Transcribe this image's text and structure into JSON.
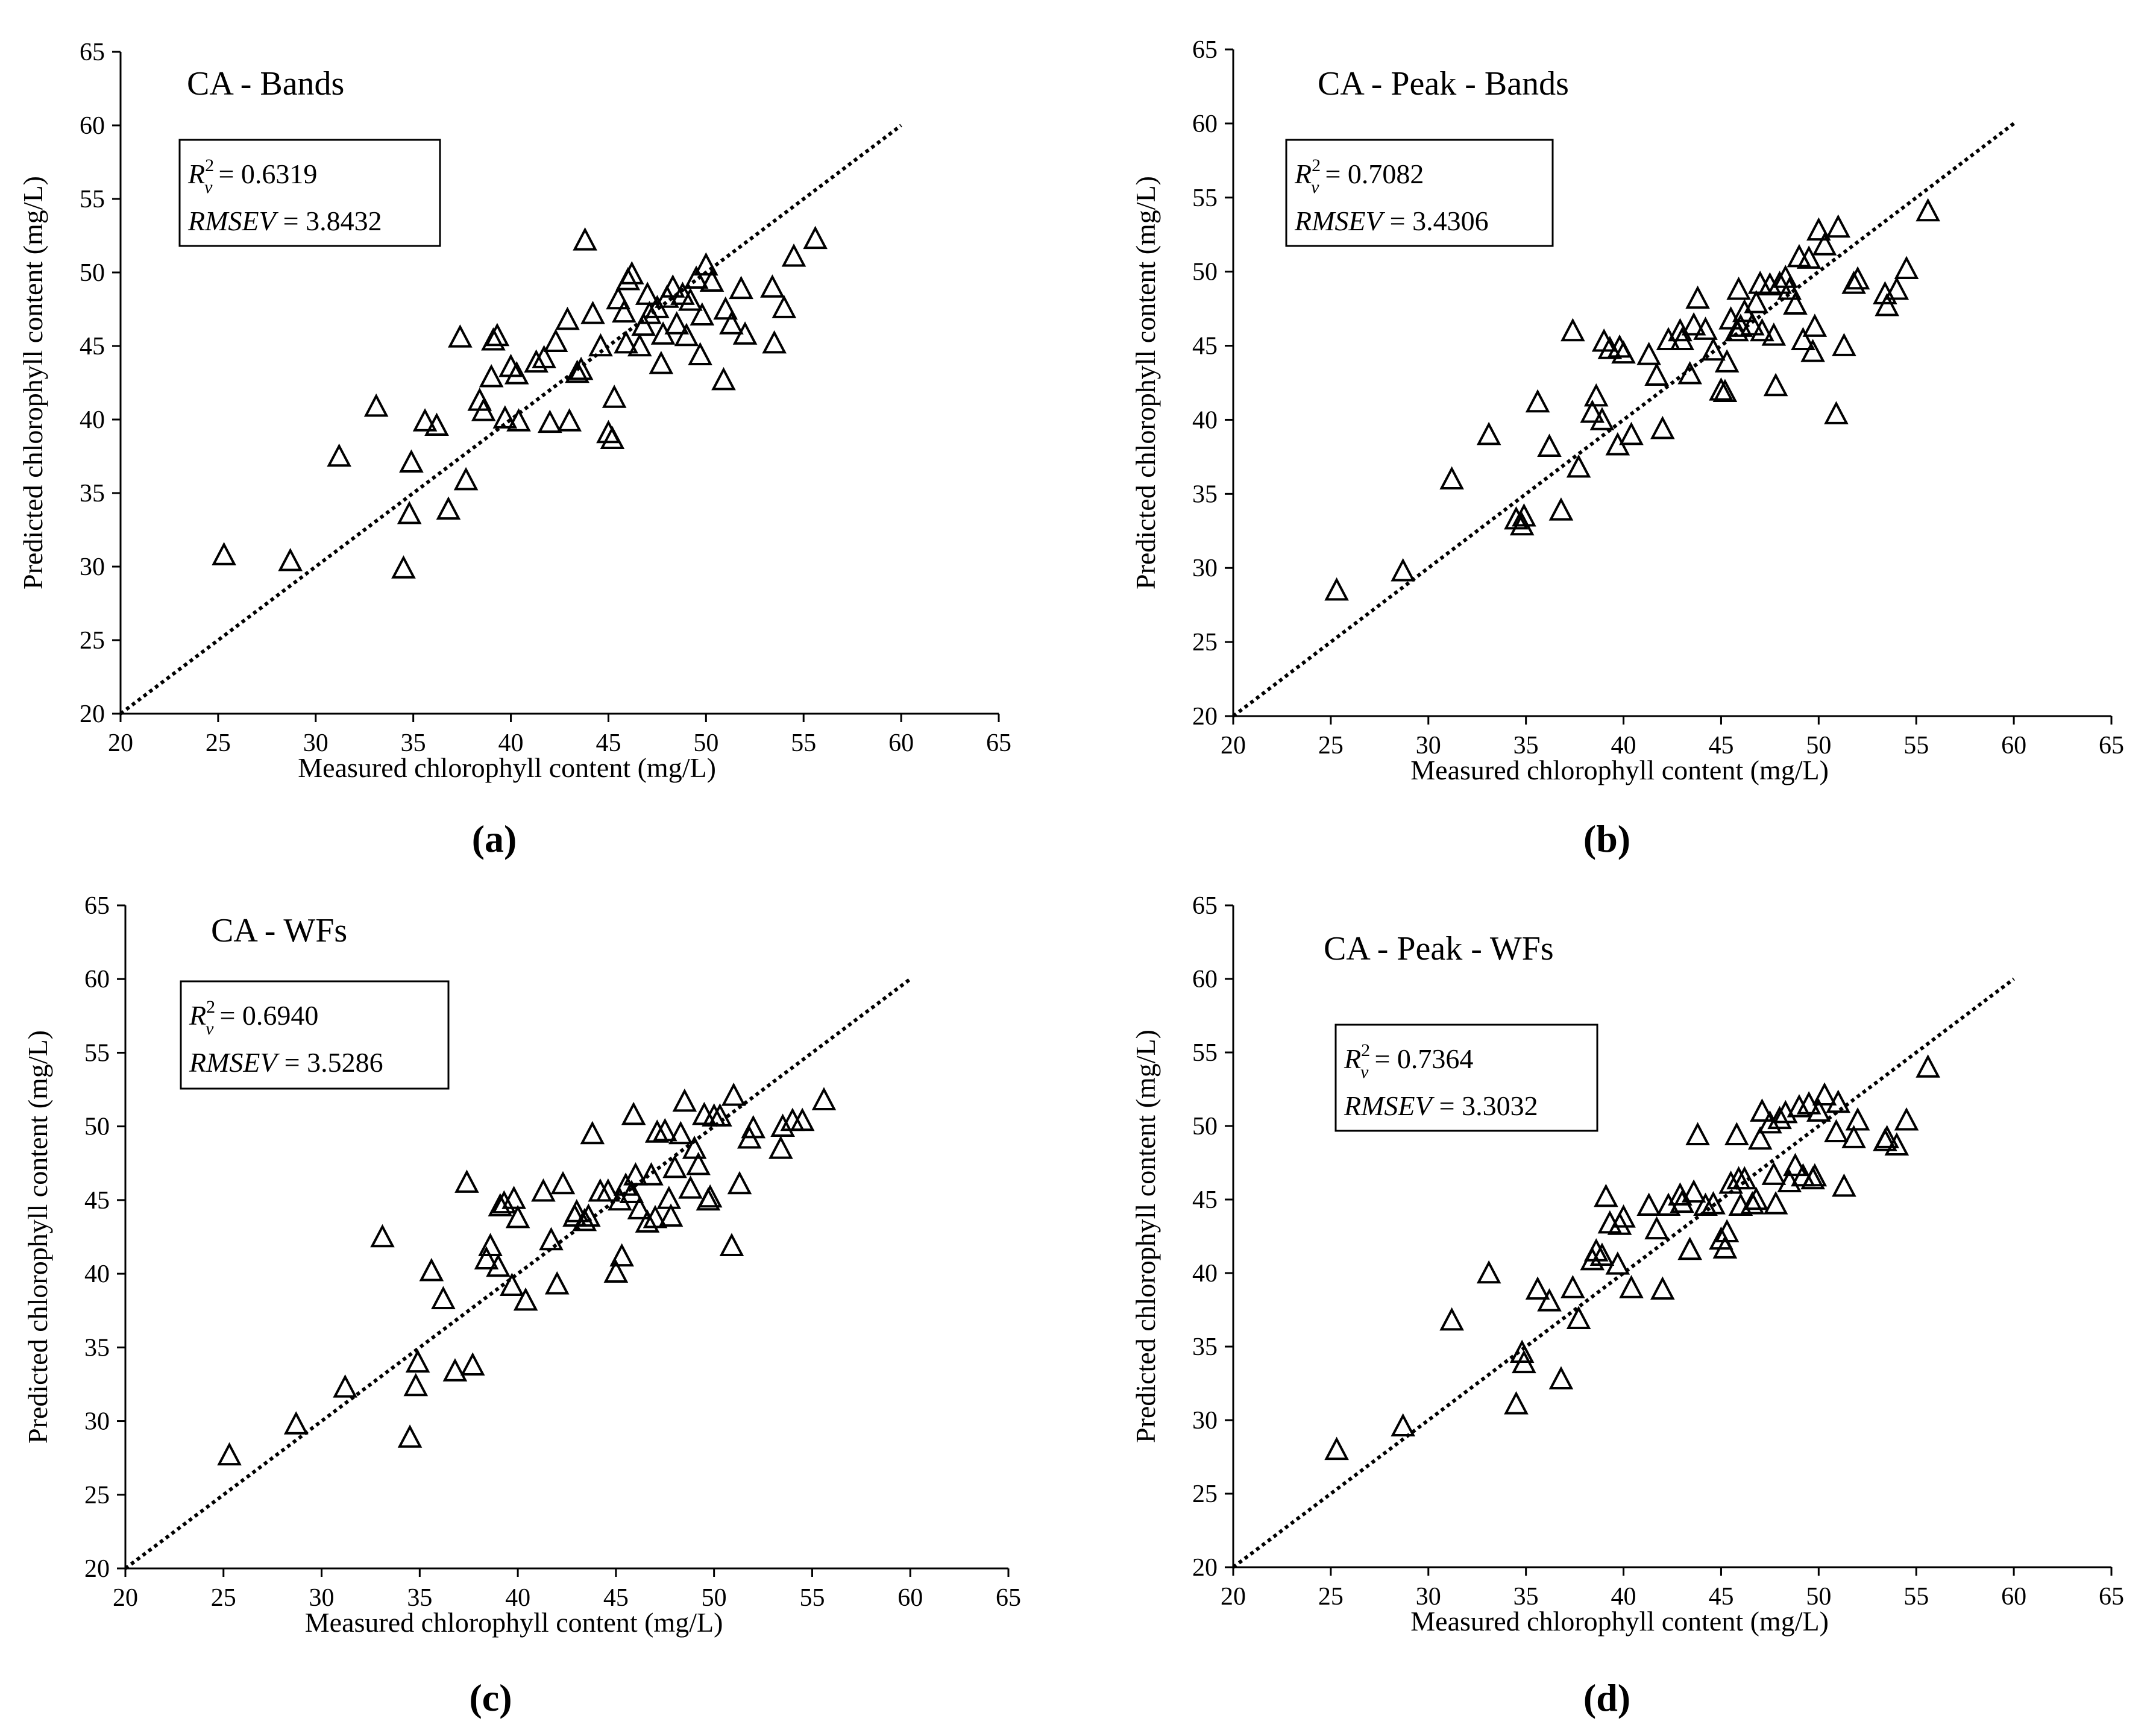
{
  "chart_data": [
    {
      "type": "scatter",
      "title": "CA - Bands",
      "panel_label": "(a)",
      "xlabel": "Measured chlorophyll content (mg/L)",
      "ylabel": "Predicted chlorophyll content (mg/L)",
      "xlim": [
        20,
        65
      ],
      "ylim": [
        20,
        65
      ],
      "xticks": [
        "20",
        "25",
        "30",
        "35",
        "40",
        "45",
        "50",
        "55",
        "60",
        "65"
      ],
      "yticks": [
        "20",
        "25",
        "30",
        "35",
        "40",
        "45",
        "50",
        "55",
        "60",
        "65"
      ],
      "reference_line": {
        "from": [
          20,
          20
        ],
        "to": [
          60,
          60
        ],
        "style": "dotted"
      },
      "stats": {
        "r2_label": "R",
        "r2_sup": "2",
        "r2_sub": "v",
        "r2_value": "= 0.6319",
        "rmse_label": "RMSEV",
        "rmse_value": "= 3.8432"
      },
      "marker": "open-triangle",
      "points": [
        [
          25.3,
          30.8
        ],
        [
          28.7,
          30.4
        ],
        [
          31.2,
          37.5
        ],
        [
          33.1,
          40.9
        ],
        [
          34.5,
          29.9
        ],
        [
          34.8,
          33.6
        ],
        [
          34.9,
          37.1
        ],
        [
          35.6,
          39.9
        ],
        [
          36.2,
          39.6
        ],
        [
          36.8,
          33.9
        ],
        [
          37.4,
          45.6
        ],
        [
          37.7,
          35.9
        ],
        [
          38.4,
          41.3
        ],
        [
          38.6,
          40.6
        ],
        [
          39.0,
          42.9
        ],
        [
          39.1,
          45.4
        ],
        [
          39.3,
          45.7
        ],
        [
          39.7,
          40.1
        ],
        [
          40.0,
          43.6
        ],
        [
          40.3,
          43.1
        ],
        [
          40.4,
          39.9
        ],
        [
          41.3,
          43.9
        ],
        [
          41.7,
          44.2
        ],
        [
          42.0,
          39.8
        ],
        [
          42.3,
          45.3
        ],
        [
          42.9,
          46.8
        ],
        [
          43.0,
          39.9
        ],
        [
          43.4,
          43.2
        ],
        [
          43.6,
          43.4
        ],
        [
          43.8,
          52.2
        ],
        [
          44.2,
          47.2
        ],
        [
          44.6,
          45.0
        ],
        [
          45.0,
          39.1
        ],
        [
          45.2,
          38.7
        ],
        [
          45.3,
          41.5
        ],
        [
          45.5,
          48.2
        ],
        [
          45.8,
          47.3
        ],
        [
          45.9,
          45.2
        ],
        [
          46.0,
          49.5
        ],
        [
          46.2,
          49.9
        ],
        [
          46.6,
          45.0
        ],
        [
          46.8,
          46.4
        ],
        [
          47.0,
          48.5
        ],
        [
          47.1,
          47.2
        ],
        [
          47.5,
          47.6
        ],
        [
          47.7,
          43.8
        ],
        [
          47.8,
          45.8
        ],
        [
          48.0,
          48.3
        ],
        [
          48.3,
          49.0
        ],
        [
          48.5,
          46.5
        ],
        [
          48.8,
          48.5
        ],
        [
          49.0,
          45.7
        ],
        [
          49.2,
          48.1
        ],
        [
          49.5,
          49.6
        ],
        [
          49.7,
          44.4
        ],
        [
          49.8,
          47.1
        ],
        [
          50.0,
          50.5
        ],
        [
          50.3,
          49.4
        ],
        [
          50.9,
          42.7
        ],
        [
          51.0,
          47.5
        ],
        [
          51.3,
          46.5
        ],
        [
          51.8,
          48.9
        ],
        [
          52.0,
          45.8
        ],
        [
          53.4,
          49.0
        ],
        [
          53.5,
          45.2
        ],
        [
          54.0,
          47.6
        ],
        [
          54.5,
          51.1
        ],
        [
          55.6,
          52.3
        ]
      ]
    },
    {
      "type": "scatter",
      "title": "CA - Peak - Bands",
      "panel_label": "(b)",
      "xlabel": "Measured chlorophyll content (mg/L)",
      "ylabel": "Predicted chlorophyll content (mg/L)",
      "xlim": [
        20,
        65
      ],
      "ylim": [
        20,
        65
      ],
      "xticks": [
        "20",
        "25",
        "30",
        "35",
        "40",
        "45",
        "50",
        "55",
        "60",
        "65"
      ],
      "yticks": [
        "20",
        "25",
        "30",
        "35",
        "40",
        "45",
        "50",
        "55",
        "60",
        "65"
      ],
      "reference_line": {
        "from": [
          20,
          20
        ],
        "to": [
          60,
          60
        ],
        "style": "dotted"
      },
      "stats": {
        "r2_label": "R",
        "r2_sup": "2",
        "r2_sub": "v",
        "r2_value": "= 0.7082",
        "rmse_label": "RMSEV",
        "rmse_value": "= 3.4306"
      },
      "marker": "open-triangle",
      "points": [
        [
          25.3,
          28.5
        ],
        [
          28.7,
          29.8
        ],
        [
          31.2,
          36.0
        ],
        [
          33.1,
          39.0
        ],
        [
          34.5,
          33.3
        ],
        [
          34.8,
          32.9
        ],
        [
          34.9,
          33.5
        ],
        [
          35.6,
          41.2
        ],
        [
          36.2,
          38.2
        ],
        [
          36.8,
          33.9
        ],
        [
          37.4,
          46.0
        ],
        [
          37.7,
          36.8
        ],
        [
          38.4,
          40.5
        ],
        [
          38.6,
          41.6
        ],
        [
          38.9,
          40.0
        ],
        [
          39.0,
          45.3
        ],
        [
          39.3,
          44.8
        ],
        [
          39.7,
          38.3
        ],
        [
          39.8,
          44.9
        ],
        [
          40.0,
          44.5
        ],
        [
          40.4,
          39.0
        ],
        [
          41.3,
          44.4
        ],
        [
          41.7,
          43.0
        ],
        [
          42.0,
          39.4
        ],
        [
          42.3,
          45.4
        ],
        [
          42.9,
          46.0
        ],
        [
          43.0,
          45.4
        ],
        [
          43.4,
          43.1
        ],
        [
          43.6,
          46.4
        ],
        [
          43.8,
          48.2
        ],
        [
          44.2,
          46.1
        ],
        [
          44.6,
          44.7
        ],
        [
          45.0,
          42.0
        ],
        [
          45.2,
          41.9
        ],
        [
          45.3,
          43.9
        ],
        [
          45.5,
          46.8
        ],
        [
          45.8,
          46.0
        ],
        [
          45.9,
          48.8
        ],
        [
          46.0,
          46.3
        ],
        [
          46.2,
          47.3
        ],
        [
          46.6,
          46.4
        ],
        [
          46.8,
          47.9
        ],
        [
          47.0,
          49.2
        ],
        [
          47.1,
          46.0
        ],
        [
          47.5,
          49.1
        ],
        [
          47.7,
          45.7
        ],
        [
          47.8,
          42.3
        ],
        [
          48.0,
          49.2
        ],
        [
          48.3,
          49.6
        ],
        [
          48.5,
          48.8
        ],
        [
          48.8,
          47.8
        ],
        [
          49.0,
          51.0
        ],
        [
          49.2,
          45.4
        ],
        [
          49.5,
          50.9
        ],
        [
          49.7,
          44.6
        ],
        [
          49.8,
          46.3
        ],
        [
          50.0,
          52.8
        ],
        [
          50.3,
          51.8
        ],
        [
          50.9,
          40.4
        ],
        [
          51.0,
          53.0
        ],
        [
          51.3,
          45.0
        ],
        [
          51.8,
          49.2
        ],
        [
          52.0,
          49.5
        ],
        [
          53.4,
          48.5
        ],
        [
          53.5,
          47.7
        ],
        [
          54.0,
          48.8
        ],
        [
          54.5,
          50.2
        ],
        [
          55.6,
          54.1
        ]
      ]
    },
    {
      "type": "scatter",
      "title": "CA - WFs",
      "panel_label": "(c)",
      "xlabel": "Measured chlorophyll content (mg/L)",
      "ylabel": "Predicted chlorophyll content (mg/L)",
      "xlim": [
        20,
        65
      ],
      "ylim": [
        20,
        65
      ],
      "xticks": [
        "20",
        "25",
        "30",
        "35",
        "40",
        "45",
        "50",
        "55",
        "60",
        "65"
      ],
      "yticks": [
        "20",
        "25",
        "30",
        "35",
        "40",
        "45",
        "50",
        "55",
        "60",
        "65"
      ],
      "reference_line": {
        "from": [
          20,
          20
        ],
        "to": [
          60,
          60
        ],
        "style": "dotted"
      },
      "stats": {
        "r2_label": "R",
        "r2_sup": "2",
        "r2_sub": "v",
        "r2_value": "= 0.6940",
        "rmse_label": "RMSEV",
        "rmse_value": "= 3.5286"
      },
      "marker": "open-triangle",
      "points": [
        [
          25.3,
          27.7
        ],
        [
          28.7,
          29.8
        ],
        [
          31.2,
          32.3
        ],
        [
          33.1,
          42.5
        ],
        [
          34.5,
          28.9
        ],
        [
          34.8,
          32.4
        ],
        [
          34.9,
          34.0
        ],
        [
          35.6,
          40.2
        ],
        [
          36.2,
          38.3
        ],
        [
          36.8,
          33.4
        ],
        [
          37.4,
          46.2
        ],
        [
          37.7,
          33.8
        ],
        [
          38.4,
          41.0
        ],
        [
          38.6,
          41.9
        ],
        [
          39.0,
          40.5
        ],
        [
          39.1,
          44.6
        ],
        [
          39.3,
          44.8
        ],
        [
          39.7,
          39.2
        ],
        [
          39.8,
          45.1
        ],
        [
          40.0,
          43.8
        ],
        [
          40.4,
          38.2
        ],
        [
          41.3,
          45.6
        ],
        [
          41.7,
          42.3
        ],
        [
          42.0,
          39.3
        ],
        [
          42.3,
          46.1
        ],
        [
          42.9,
          43.9
        ],
        [
          43.0,
          44.2
        ],
        [
          43.4,
          43.6
        ],
        [
          43.6,
          43.9
        ],
        [
          43.8,
          49.5
        ],
        [
          44.2,
          45.6
        ],
        [
          44.6,
          45.6
        ],
        [
          45.0,
          40.1
        ],
        [
          45.2,
          45.0
        ],
        [
          45.3,
          41.2
        ],
        [
          45.5,
          46.0
        ],
        [
          45.8,
          45.5
        ],
        [
          45.9,
          50.8
        ],
        [
          46.0,
          46.7
        ],
        [
          46.2,
          44.4
        ],
        [
          46.6,
          43.5
        ],
        [
          46.8,
          46.7
        ],
        [
          47.0,
          43.8
        ],
        [
          47.1,
          49.6
        ],
        [
          47.5,
          49.7
        ],
        [
          47.7,
          45.1
        ],
        [
          47.8,
          43.9
        ],
        [
          48.0,
          47.2
        ],
        [
          48.3,
          49.5
        ],
        [
          48.5,
          51.7
        ],
        [
          48.8,
          45.8
        ],
        [
          49.0,
          48.5
        ],
        [
          49.2,
          47.4
        ],
        [
          49.5,
          50.8
        ],
        [
          49.7,
          45.0
        ],
        [
          49.8,
          45.2
        ],
        [
          50.0,
          50.7
        ],
        [
          50.3,
          50.7
        ],
        [
          50.9,
          41.9
        ],
        [
          51.0,
          52.1
        ],
        [
          51.3,
          46.1
        ],
        [
          51.8,
          49.2
        ],
        [
          52.0,
          49.9
        ],
        [
          53.4,
          48.5
        ],
        [
          53.5,
          50.0
        ],
        [
          54.0,
          50.4
        ],
        [
          54.5,
          50.4
        ],
        [
          55.6,
          51.8
        ]
      ]
    },
    {
      "type": "scatter",
      "title": "CA - Peak - WFs",
      "panel_label": "(d)",
      "xlabel": "Measured chlorophyll content (mg/L)",
      "ylabel": "Predicted chlorophyll content (mg/L)",
      "xlim": [
        20,
        65
      ],
      "ylim": [
        20,
        65
      ],
      "xticks": [
        "20",
        "25",
        "30",
        "35",
        "40",
        "45",
        "50",
        "55",
        "60",
        "65"
      ],
      "yticks": [
        "20",
        "25",
        "30",
        "35",
        "40",
        "45",
        "50",
        "55",
        "60",
        "65"
      ],
      "reference_line": {
        "from": [
          20,
          20
        ],
        "to": [
          60,
          60
        ],
        "style": "dotted"
      },
      "stats": {
        "r2_label": "R",
        "r2_sup": "2",
        "r2_sub": "v",
        "r2_value": "= 0.7364",
        "rmse_label": "RMSEV",
        "rmse_value": "= 3.3032"
      },
      "marker": "open-triangle",
      "points": [
        [
          25.3,
          28.0
        ],
        [
          28.7,
          29.6
        ],
        [
          31.2,
          36.8
        ],
        [
          33.1,
          40.0
        ],
        [
          34.5,
          31.1
        ],
        [
          34.8,
          34.6
        ],
        [
          34.9,
          33.9
        ],
        [
          35.6,
          38.9
        ],
        [
          36.2,
          38.1
        ],
        [
          36.8,
          32.8
        ],
        [
          37.4,
          39.0
        ],
        [
          37.7,
          36.9
        ],
        [
          38.4,
          40.9
        ],
        [
          38.6,
          41.5
        ],
        [
          38.9,
          41.2
        ],
        [
          39.1,
          45.2
        ],
        [
          39.3,
          43.4
        ],
        [
          39.7,
          40.6
        ],
        [
          39.8,
          43.3
        ],
        [
          40.0,
          43.8
        ],
        [
          40.4,
          39.0
        ],
        [
          41.3,
          44.6
        ],
        [
          41.7,
          43.0
        ],
        [
          42.0,
          38.9
        ],
        [
          42.3,
          44.6
        ],
        [
          42.9,
          45.3
        ],
        [
          43.0,
          44.8
        ],
        [
          43.4,
          41.6
        ],
        [
          43.6,
          45.5
        ],
        [
          43.8,
          49.4
        ],
        [
          44.2,
          44.6
        ],
        [
          44.6,
          44.7
        ],
        [
          45.0,
          42.3
        ],
        [
          45.2,
          41.7
        ],
        [
          45.3,
          42.8
        ],
        [
          45.5,
          46.1
        ],
        [
          45.8,
          49.4
        ],
        [
          45.9,
          46.4
        ],
        [
          46.0,
          44.6
        ],
        [
          46.2,
          46.4
        ],
        [
          46.6,
          44.7
        ],
        [
          46.8,
          45.0
        ],
        [
          47.0,
          49.1
        ],
        [
          47.1,
          51.0
        ],
        [
          47.5,
          50.2
        ],
        [
          47.7,
          46.7
        ],
        [
          47.8,
          44.7
        ],
        [
          48.0,
          50.5
        ],
        [
          48.3,
          50.9
        ],
        [
          48.5,
          46.2
        ],
        [
          48.8,
          47.3
        ],
        [
          49.0,
          51.3
        ],
        [
          49.2,
          46.6
        ],
        [
          49.5,
          51.5
        ],
        [
          49.7,
          46.4
        ],
        [
          49.8,
          46.6
        ],
        [
          50.0,
          51.0
        ],
        [
          50.3,
          52.1
        ],
        [
          50.9,
          49.6
        ],
        [
          51.0,
          51.6
        ],
        [
          51.3,
          45.9
        ],
        [
          51.8,
          49.2
        ],
        [
          52.0,
          50.4
        ],
        [
          53.4,
          49.0
        ],
        [
          53.5,
          49.2
        ],
        [
          54.0,
          48.7
        ],
        [
          54.5,
          50.4
        ],
        [
          55.6,
          54.0
        ]
      ]
    }
  ]
}
